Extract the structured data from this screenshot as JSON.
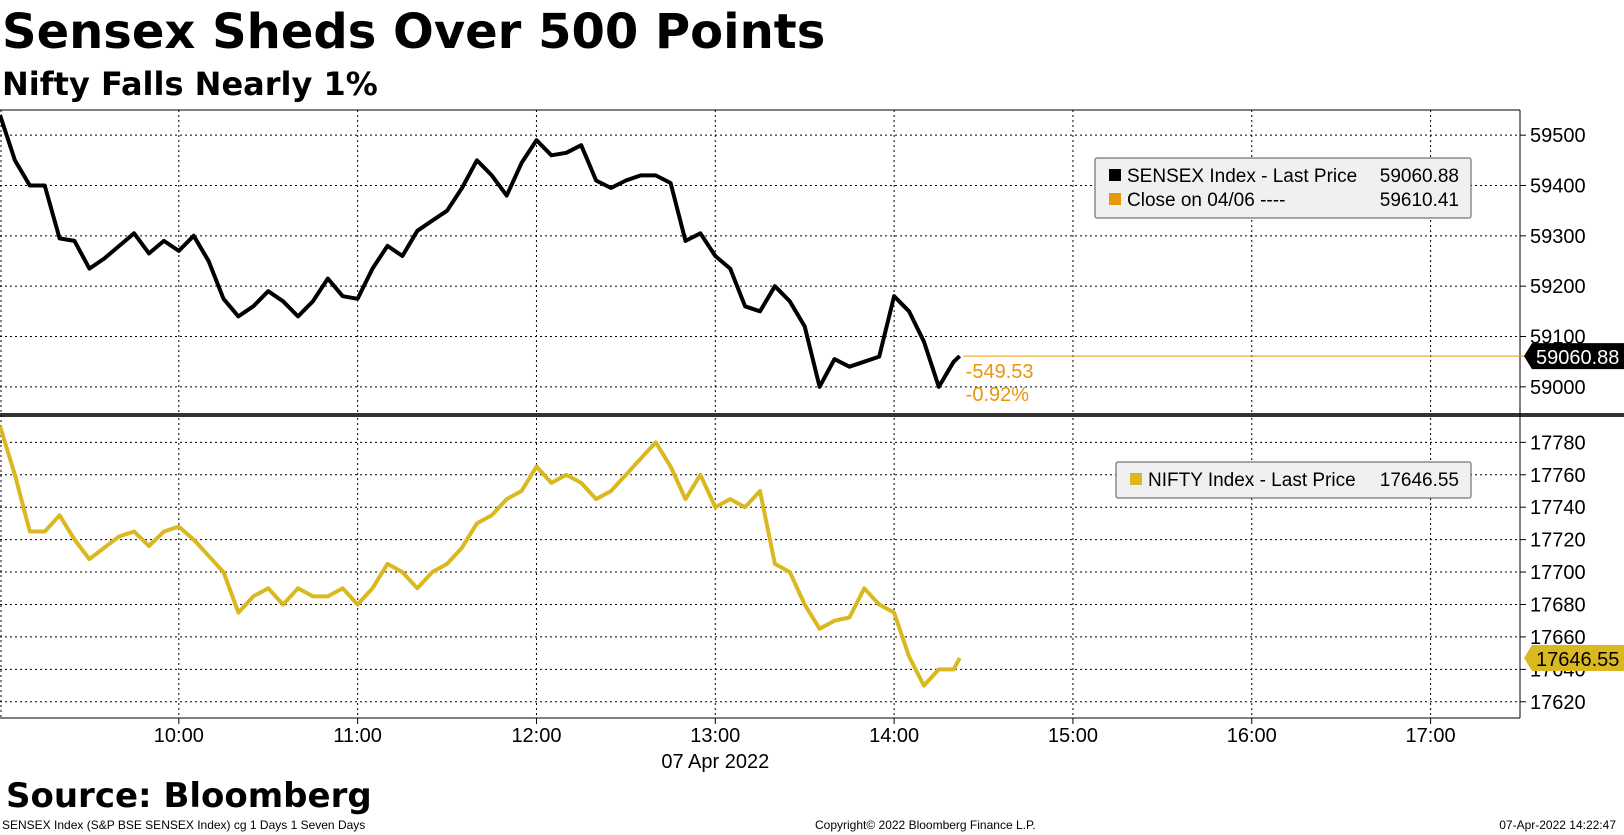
{
  "title": "Sensex Sheds Over 500 Points",
  "subtitle": "Nifty Falls Nearly 1%",
  "source": "Source: Bloomberg",
  "footer": {
    "left": "SENSEX Index (S&P BSE SENSEX Index) cg 1 Days 1 Seven Days",
    "center": "Copyright© 2022 Bloomberg Finance L.P.",
    "right": "07-Apr-2022 14:22:47"
  },
  "colors": {
    "sensex": "#000000",
    "nifty": "#d9b91f",
    "close_marker": "#e8960c",
    "change_text": "#e8960c",
    "grid": "#000000"
  },
  "chart_data": [
    {
      "type": "line",
      "panel": "top",
      "x_axis": {
        "ticks": [
          "10:00",
          "11:00",
          "12:00",
          "13:00",
          "14:00",
          "15:00",
          "16:00",
          "17:00"
        ],
        "date_label": "07 Apr 2022",
        "range": [
          "09:00",
          "17:30"
        ]
      },
      "ylim": [
        58950,
        59550
      ],
      "yticks": [
        59000,
        59100,
        59200,
        59300,
        59400,
        59500
      ],
      "y_tick_labels": [
        "59000",
        "59100",
        "59200",
        "59300",
        "59400",
        "59500"
      ],
      "grid": true,
      "legend_position": "top-right",
      "legend": [
        {
          "label": "SENSEX Index - Last Price",
          "value": "59060.88",
          "color": "#000000"
        },
        {
          "label": "Close on 04/06 ----",
          "value": "59610.41",
          "color": "#e8960c"
        }
      ],
      "last_value_label": "59060.88",
      "change_annotation": {
        "points": "-549.53",
        "percent": "-0.92%"
      },
      "series": [
        {
          "name": "SENSEX Index",
          "x": [
            "09:00",
            "09:05",
            "09:10",
            "09:15",
            "09:20",
            "09:25",
            "09:30",
            "09:35",
            "09:40",
            "09:45",
            "09:50",
            "09:55",
            "10:00",
            "10:05",
            "10:10",
            "10:15",
            "10:20",
            "10:25",
            "10:30",
            "10:35",
            "10:40",
            "10:45",
            "10:50",
            "10:55",
            "11:00",
            "11:05",
            "11:10",
            "11:15",
            "11:20",
            "11:25",
            "11:30",
            "11:35",
            "11:40",
            "11:45",
            "11:50",
            "11:55",
            "12:00",
            "12:05",
            "12:10",
            "12:15",
            "12:20",
            "12:25",
            "12:30",
            "12:35",
            "12:40",
            "12:45",
            "12:50",
            "12:55",
            "13:00",
            "13:05",
            "13:10",
            "13:15",
            "13:20",
            "13:25",
            "13:30",
            "13:35",
            "13:40",
            "13:45",
            "13:50",
            "13:55",
            "14:00",
            "14:05",
            "14:10",
            "14:15",
            "14:20",
            "14:22"
          ],
          "values": [
            59540,
            59450,
            59400,
            59400,
            59295,
            59290,
            59235,
            59255,
            59280,
            59305,
            59265,
            59290,
            59270,
            59300,
            59250,
            59175,
            59140,
            59160,
            59190,
            59170,
            59140,
            59170,
            59215,
            59180,
            59175,
            59235,
            59280,
            59260,
            59310,
            59330,
            59350,
            59395,
            59450,
            59420,
            59380,
            59445,
            59490,
            59460,
            59465,
            59480,
            59410,
            59395,
            59410,
            59420,
            59420,
            59405,
            59290,
            59305,
            59260,
            59235,
            59160,
            59150,
            59200,
            59170,
            59120,
            59000,
            59055,
            59040,
            59050,
            59060,
            59180,
            59150,
            59090,
            59000,
            59050,
            59061
          ],
          "color": "#000000"
        }
      ]
    },
    {
      "type": "line",
      "panel": "bottom",
      "ylim": [
        17610,
        17795
      ],
      "yticks": [
        17620,
        17640,
        17660,
        17680,
        17700,
        17720,
        17740,
        17760,
        17780
      ],
      "y_tick_labels": [
        "17620",
        "17640",
        "17660",
        "17680",
        "17700",
        "17720",
        "17740",
        "17760",
        "17780"
      ],
      "grid": true,
      "legend_position": "top-right",
      "legend": [
        {
          "label": "NIFTY Index - Last Price",
          "value": "17646.55",
          "color": "#d9b91f"
        }
      ],
      "last_value_label": "17646.55",
      "series": [
        {
          "name": "NIFTY Index",
          "x": [
            "09:00",
            "09:05",
            "09:10",
            "09:15",
            "09:20",
            "09:25",
            "09:30",
            "09:35",
            "09:40",
            "09:45",
            "09:50",
            "09:55",
            "10:00",
            "10:05",
            "10:10",
            "10:15",
            "10:20",
            "10:25",
            "10:30",
            "10:35",
            "10:40",
            "10:45",
            "10:50",
            "10:55",
            "11:00",
            "11:05",
            "11:10",
            "11:15",
            "11:20",
            "11:25",
            "11:30",
            "11:35",
            "11:40",
            "11:45",
            "11:50",
            "11:55",
            "12:00",
            "12:05",
            "12:10",
            "12:15",
            "12:20",
            "12:25",
            "12:30",
            "12:35",
            "12:40",
            "12:45",
            "12:50",
            "12:55",
            "13:00",
            "13:05",
            "13:10",
            "13:15",
            "13:20",
            "13:25",
            "13:30",
            "13:35",
            "13:40",
            "13:45",
            "13:50",
            "13:55",
            "14:00",
            "14:05",
            "14:10",
            "14:15",
            "14:20",
            "14:22"
          ],
          "values": [
            17790,
            17760,
            17725,
            17725,
            17735,
            17720,
            17708,
            17715,
            17722,
            17725,
            17716,
            17725,
            17728,
            17720,
            17710,
            17700,
            17675,
            17685,
            17690,
            17680,
            17690,
            17685,
            17685,
            17690,
            17680,
            17690,
            17705,
            17700,
            17690,
            17700,
            17705,
            17715,
            17730,
            17735,
            17745,
            17750,
            17765,
            17755,
            17760,
            17755,
            17745,
            17750,
            17760,
            17770,
            17780,
            17765,
            17745,
            17760,
            17740,
            17745,
            17740,
            17750,
            17705,
            17700,
            17680,
            17665,
            17670,
            17672,
            17690,
            17680,
            17675,
            17648,
            17630,
            17640,
            17640,
            17647
          ],
          "color": "#d9b91f"
        }
      ]
    }
  ]
}
